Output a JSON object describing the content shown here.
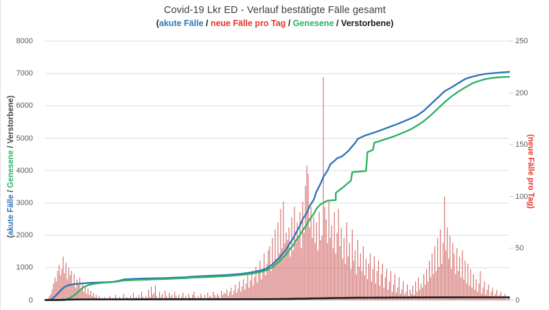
{
  "header": {
    "title": "Covid-19 Lkr ED - Verlauf bestätigte Fälle gesamt",
    "subtitle_parts": [
      {
        "text": "(",
        "color": "#1a1a1a"
      },
      {
        "text": "akute Fälle",
        "color": "#2e75b6"
      },
      {
        "text": " / ",
        "color": "#1a1a1a"
      },
      {
        "text": "neue Fälle pro Tag",
        "color": "#e8322a"
      },
      {
        "text": " / ",
        "color": "#1a1a1a"
      },
      {
        "text": "Genesene",
        "color": "#2fb065"
      },
      {
        "text": " / ",
        "color": "#1a1a1a"
      },
      {
        "text": "Verstorbene",
        "color": "#1a1a1a"
      },
      {
        "text": ")",
        "color": "#1a1a1a"
      }
    ]
  },
  "axes": {
    "left": {
      "ticks": [
        0,
        1000,
        2000,
        3000,
        4000,
        5000,
        6000,
        7000,
        8000
      ],
      "max": 8000,
      "label_parts": [
        {
          "text": "(",
          "color": "#454545"
        },
        {
          "text": "akute Fälle",
          "color": "#2e75b6"
        },
        {
          "text": " / ",
          "color": "#454545"
        },
        {
          "text": "Genesene",
          "color": "#2fb065"
        },
        {
          "text": " / ",
          "color": "#454545"
        },
        {
          "text": "Verstorbene)",
          "color": "#454545"
        }
      ]
    },
    "right": {
      "ticks": [
        0,
        50,
        100,
        150,
        200,
        250
      ],
      "max": 250,
      "label_text": "(neue Fälle pro Tag)",
      "label_color": "#e8322a"
    }
  },
  "chart_data": {
    "type": "composite",
    "title": "Covid-19 Lkr ED - Verlauf bestätigte Fälle gesamt",
    "x_axis": {
      "label": "",
      "tick_labels_visible": false,
      "points": 338
    },
    "left_axis_range": [
      0,
      8000
    ],
    "right_axis_range": [
      0,
      250
    ],
    "grid": "horizontal-every-1000-left-units",
    "legend_position": "in-subtitle",
    "series": [
      {
        "name": "neue Fälle pro Tag",
        "type": "bar",
        "axis": "right",
        "color": "#c9504e",
        "values": [
          0,
          1,
          2,
          4,
          6,
          10,
          16,
          22,
          18,
          28,
          34,
          24,
          30,
          42,
          26,
          36,
          20,
          31,
          24,
          28,
          16,
          25,
          12,
          20,
          15,
          22,
          10,
          17,
          8,
          13,
          6,
          11,
          5,
          9,
          4,
          7,
          3,
          5,
          2,
          4,
          1,
          2,
          0,
          3,
          1,
          0,
          2,
          4,
          1,
          2,
          0,
          5,
          2,
          1,
          3,
          0,
          2,
          6,
          1,
          3,
          2,
          0,
          4,
          1,
          7,
          2,
          3,
          1,
          5,
          2,
          8,
          3,
          1,
          4,
          2,
          10,
          3,
          13,
          5,
          7,
          14,
          4,
          2,
          8,
          3,
          6,
          2,
          9,
          4,
          2,
          7,
          3,
          5,
          2,
          8,
          4,
          2,
          5,
          1,
          3,
          7,
          2,
          4,
          1,
          6,
          3,
          2,
          5,
          8,
          3,
          1,
          4,
          2,
          6,
          3,
          1,
          5,
          2,
          7,
          3,
          4,
          2,
          8,
          5,
          3,
          6,
          4,
          2,
          9,
          5,
          7,
          6,
          10,
          4,
          8,
          12,
          5,
          9,
          15,
          7,
          11,
          18,
          8,
          13,
          20,
          10,
          16,
          24,
          12,
          19,
          28,
          14,
          22,
          32,
          17,
          26,
          38,
          20,
          30,
          45,
          24,
          35,
          48,
          52,
          28,
          60,
          35,
          68,
          40,
          75,
          45,
          88,
          50,
          95,
          55,
          65,
          58,
          70,
          42,
          80,
          48,
          90,
          55,
          75,
          60,
          85,
          50,
          95,
          65,
          110,
          130,
          122,
          70,
          90,
          60,
          80,
          55,
          75,
          48,
          85,
          58,
          62,
          215,
          90,
          78,
          55,
          95,
          60,
          72,
          50,
          85,
          45,
          65,
          88,
          52,
          70,
          40,
          60,
          35,
          75,
          42,
          55,
          30,
          68,
          38,
          48,
          25,
          58,
          32,
          45,
          28,
          52,
          24,
          40,
          20,
          35,
          45,
          18,
          30,
          42,
          16,
          28,
          38,
          14,
          25,
          35,
          12,
          22,
          30,
          10,
          18,
          28,
          8,
          15,
          25,
          7,
          12,
          22,
          6,
          10,
          18,
          5,
          8,
          15,
          4,
          10,
          6,
          14,
          5,
          18,
          8,
          22,
          10,
          16,
          12,
          25,
          15,
          30,
          18,
          38,
          22,
          45,
          25,
          52,
          28,
          60,
          32,
          68,
          35,
          55,
          100,
          48,
          70,
          40,
          62,
          30,
          55,
          45,
          25,
          50,
          28,
          42,
          22,
          48,
          20,
          38,
          16,
          35,
          14,
          30,
          12,
          25,
          10,
          20,
          8,
          16,
          28,
          6,
          12,
          18,
          5,
          10,
          15,
          4,
          8,
          12,
          3,
          6,
          10,
          2,
          5,
          8,
          2,
          4,
          6,
          1,
          3,
          2
        ]
      },
      {
        "name": "akute Fälle",
        "type": "line",
        "axis": "left",
        "color": "#2e75b6",
        "points": [
          [
            0,
            0
          ],
          [
            3,
            8
          ],
          [
            5,
            40
          ],
          [
            7,
            110
          ],
          [
            9,
            200
          ],
          [
            11,
            290
          ],
          [
            13,
            370
          ],
          [
            15,
            430
          ],
          [
            18,
            470
          ],
          [
            22,
            500
          ],
          [
            27,
            515
          ],
          [
            32,
            530
          ],
          [
            40,
            545
          ],
          [
            45,
            550
          ],
          [
            50,
            565
          ],
          [
            54,
            600
          ],
          [
            57,
            635
          ],
          [
            65,
            655
          ],
          [
            72,
            665
          ],
          [
            87,
            680
          ],
          [
            102,
            705
          ],
          [
            107,
            725
          ],
          [
            117,
            745
          ],
          [
            132,
            775
          ],
          [
            142,
            810
          ],
          [
            150,
            855
          ],
          [
            157,
            920
          ],
          [
            160,
            960
          ],
          [
            162,
            1010
          ],
          [
            165,
            1100
          ],
          [
            167,
            1190
          ],
          [
            170,
            1300
          ],
          [
            172,
            1420
          ],
          [
            175,
            1560
          ],
          [
            177,
            1715
          ],
          [
            180,
            1900
          ],
          [
            182,
            2070
          ],
          [
            185,
            2300
          ],
          [
            187,
            2500
          ],
          [
            190,
            2700
          ],
          [
            192,
            2900
          ],
          [
            195,
            3100
          ],
          [
            197,
            3350
          ],
          [
            200,
            3600
          ],
          [
            202,
            3800
          ],
          [
            205,
            4000
          ],
          [
            207,
            4190
          ],
          [
            210,
            4300
          ],
          [
            212,
            4380
          ],
          [
            215,
            4430
          ],
          [
            217,
            4490
          ],
          [
            220,
            4600
          ],
          [
            222,
            4700
          ],
          [
            225,
            4850
          ],
          [
            227,
            4980
          ],
          [
            230,
            5040
          ],
          [
            232,
            5080
          ],
          [
            237,
            5150
          ],
          [
            242,
            5220
          ],
          [
            247,
            5300
          ],
          [
            252,
            5380
          ],
          [
            257,
            5460
          ],
          [
            262,
            5550
          ],
          [
            267,
            5640
          ],
          [
            270,
            5700
          ],
          [
            275,
            5850
          ],
          [
            280,
            6050
          ],
          [
            285,
            6250
          ],
          [
            290,
            6450
          ],
          [
            295,
            6570
          ],
          [
            300,
            6700
          ],
          [
            305,
            6830
          ],
          [
            310,
            6900
          ],
          [
            315,
            6950
          ],
          [
            320,
            6990
          ],
          [
            325,
            7010
          ],
          [
            330,
            7030
          ],
          [
            337,
            7050
          ]
        ]
      },
      {
        "name": "Genesene",
        "type": "line",
        "axis": "left",
        "color": "#2fb065",
        "points": [
          [
            0,
            0
          ],
          [
            14,
            0
          ],
          [
            16,
            30
          ],
          [
            19,
            90
          ],
          [
            22,
            180
          ],
          [
            25,
            300
          ],
          [
            28,
            400
          ],
          [
            31,
            460
          ],
          [
            35,
            500
          ],
          [
            40,
            525
          ],
          [
            45,
            545
          ],
          [
            50,
            558
          ],
          [
            54,
            585
          ],
          [
            57,
            605
          ],
          [
            65,
            620
          ],
          [
            72,
            630
          ],
          [
            87,
            650
          ],
          [
            102,
            678
          ],
          [
            107,
            695
          ],
          [
            117,
            710
          ],
          [
            132,
            740
          ],
          [
            142,
            775
          ],
          [
            150,
            815
          ],
          [
            157,
            875
          ],
          [
            160,
            915
          ],
          [
            162,
            950
          ],
          [
            165,
            1010
          ],
          [
            167,
            1090
          ],
          [
            170,
            1190
          ],
          [
            172,
            1290
          ],
          [
            175,
            1410
          ],
          [
            177,
            1540
          ],
          [
            180,
            1690
          ],
          [
            182,
            1840
          ],
          [
            185,
            2010
          ],
          [
            187,
            2160
          ],
          [
            190,
            2330
          ],
          [
            192,
            2490
          ],
          [
            195,
            2660
          ],
          [
            197,
            2830
          ],
          [
            200,
            2960
          ],
          [
            205,
            3070
          ],
          [
            211,
            3090
          ],
          [
            211,
            3310
          ],
          [
            217,
            3510
          ],
          [
            222,
            3690
          ],
          [
            223,
            3950
          ],
          [
            228,
            3970
          ],
          [
            233,
            3990
          ],
          [
            234,
            4570
          ],
          [
            238,
            4640
          ],
          [
            239,
            4860
          ],
          [
            242,
            4900
          ],
          [
            247,
            4970
          ],
          [
            252,
            5040
          ],
          [
            257,
            5120
          ],
          [
            262,
            5210
          ],
          [
            267,
            5310
          ],
          [
            270,
            5390
          ],
          [
            275,
            5530
          ],
          [
            280,
            5710
          ],
          [
            285,
            5910
          ],
          [
            290,
            6110
          ],
          [
            295,
            6290
          ],
          [
            300,
            6440
          ],
          [
            305,
            6570
          ],
          [
            310,
            6690
          ],
          [
            315,
            6770
          ],
          [
            320,
            6830
          ],
          [
            325,
            6865
          ],
          [
            330,
            6885
          ],
          [
            337,
            6900
          ]
        ]
      },
      {
        "name": "Verstorbene",
        "type": "line",
        "axis": "left",
        "color": "#1c1c1c",
        "points": [
          [
            0,
            0
          ],
          [
            8,
            2
          ],
          [
            12,
            6
          ],
          [
            16,
            12
          ],
          [
            22,
            18
          ],
          [
            30,
            21
          ],
          [
            57,
            23
          ],
          [
            102,
            25
          ],
          [
            132,
            26
          ],
          [
            150,
            27
          ],
          [
            160,
            28
          ],
          [
            167,
            30
          ],
          [
            172,
            33
          ],
          [
            177,
            36
          ],
          [
            182,
            40
          ],
          [
            187,
            44
          ],
          [
            192,
            48
          ],
          [
            197,
            52
          ],
          [
            202,
            56
          ],
          [
            207,
            60
          ],
          [
            212,
            63
          ],
          [
            217,
            66
          ],
          [
            222,
            69
          ],
          [
            227,
            71
          ],
          [
            232,
            73
          ],
          [
            237,
            75
          ],
          [
            242,
            76
          ],
          [
            247,
            77
          ],
          [
            252,
            78
          ],
          [
            262,
            79
          ],
          [
            267,
            80
          ],
          [
            275,
            81
          ],
          [
            285,
            82
          ],
          [
            295,
            83
          ],
          [
            310,
            84
          ],
          [
            337,
            85
          ]
        ]
      }
    ]
  }
}
